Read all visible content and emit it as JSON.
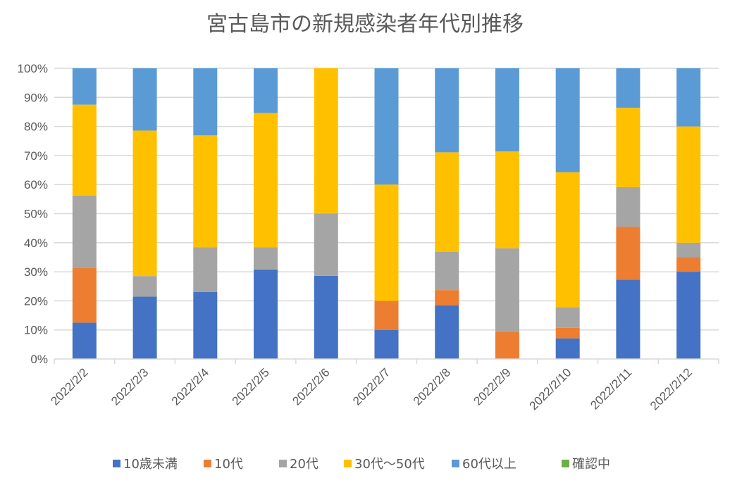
{
  "chart_data": {
    "type": "bar",
    "stacked": "percent",
    "title": "宮古島市の新規感染者年代別推移",
    "xlabel": "",
    "ylabel": "",
    "ylim": [
      0,
      100
    ],
    "yticks": [
      "0%",
      "10%",
      "20%",
      "30%",
      "40%",
      "50%",
      "60%",
      "70%",
      "80%",
      "90%",
      "100%"
    ],
    "grid": true,
    "legend_position": "bottom",
    "categories": [
      "2022/2/2",
      "2022/2/3",
      "2022/2/4",
      "2022/2/5",
      "2022/2/6",
      "2022/2/7",
      "2022/2/8",
      "2022/2/9",
      "2022/2/10",
      "2022/2/11",
      "2022/2/12"
    ],
    "series": [
      {
        "name": "10歳未満",
        "color": "#4472C4",
        "values": [
          12.5,
          21.4,
          23.1,
          30.8,
          28.6,
          10.0,
          18.4,
          0.0,
          7.1,
          27.3,
          30.0
        ]
      },
      {
        "name": "10代",
        "color": "#ED7D31",
        "values": [
          18.75,
          0.0,
          0.0,
          0.0,
          0.0,
          10.0,
          5.3,
          9.5,
          3.6,
          18.2,
          5.0
        ]
      },
      {
        "name": "20代",
        "color": "#A5A5A5",
        "values": [
          25.0,
          7.1,
          15.4,
          7.7,
          21.4,
          0.0,
          13.2,
          28.6,
          7.1,
          13.6,
          5.0
        ]
      },
      {
        "name": "30代〜50代",
        "color": "#FFC000",
        "values": [
          31.25,
          50.0,
          38.5,
          46.2,
          50.0,
          40.0,
          34.2,
          33.3,
          46.4,
          27.3,
          40.0
        ]
      },
      {
        "name": "60代以上",
        "color": "#5B9BD5",
        "values": [
          12.5,
          21.4,
          23.1,
          15.4,
          0.0,
          40.0,
          28.9,
          28.6,
          35.7,
          13.6,
          20.0
        ]
      },
      {
        "name": "確認中",
        "color": "#70AD47",
        "values": [
          0,
          0,
          0,
          0,
          0,
          0,
          0,
          0,
          0,
          0,
          0
        ]
      }
    ]
  }
}
